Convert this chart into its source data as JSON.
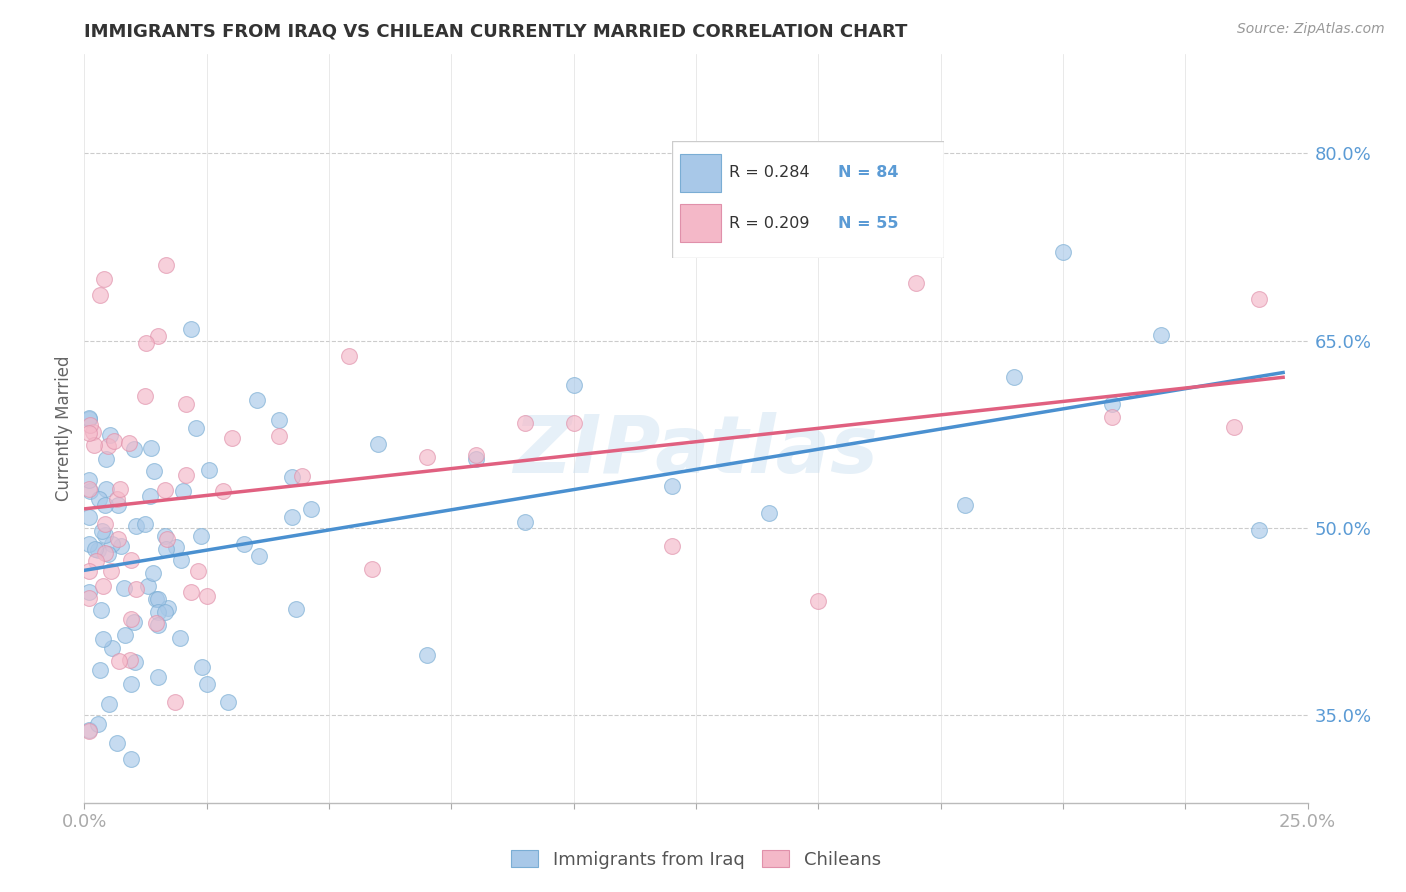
{
  "title": "IMMIGRANTS FROM IRAQ VS CHILEAN CURRENTLY MARRIED CORRELATION CHART",
  "source": "Source: ZipAtlas.com",
  "ylabel": "Currently Married",
  "watermark": "ZIPatlas",
  "xlim": [
    0.0,
    0.25
  ],
  "ylim": [
    0.28,
    0.88
  ],
  "ytick_positions": [
    0.35,
    0.5,
    0.65,
    0.8
  ],
  "ytick_labels": [
    "35.0%",
    "50.0%",
    "65.0%",
    "80.0%"
  ],
  "iraq_color": "#a8c8e8",
  "iraq_edge_color": "#7aadd4",
  "chile_color": "#f4b8c8",
  "chile_edge_color": "#e090aa",
  "iraq_line_color": "#4a90d0",
  "chile_line_color": "#e06080",
  "R_iraq": 0.284,
  "N_iraq": 84,
  "R_chile": 0.209,
  "N_chile": 55,
  "legend_iraq": "Immigrants from Iraq",
  "legend_chile": "Chileans",
  "background_color": "#ffffff",
  "grid_color": "#cccccc",
  "axis_color": "#5b9bd5",
  "title_color": "#333333"
}
